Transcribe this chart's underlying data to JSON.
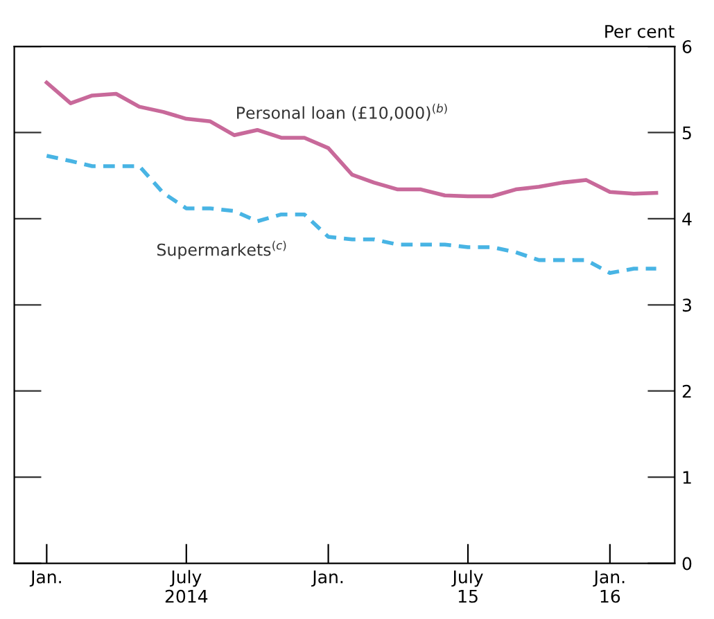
{
  "chart_data": {
    "type": "line",
    "ylabel": "Per cent",
    "x": [
      "2014-01",
      "2014-02",
      "2014-03",
      "2014-04",
      "2014-05",
      "2014-06",
      "2014-07",
      "2014-08",
      "2014-09",
      "2014-10",
      "2014-11",
      "2014-12",
      "2015-01",
      "2015-02",
      "2015-03",
      "2015-04",
      "2015-05",
      "2015-06",
      "2015-07",
      "2015-08",
      "2015-09",
      "2015-10",
      "2015-11",
      "2015-12",
      "2016-01",
      "2016-02",
      "2016-03"
    ],
    "series": [
      {
        "name": "Personal loan (£10,000)$^{(b)}$",
        "color": "#c8699a",
        "line_style": "solid",
        "values": [
          5.58,
          5.34,
          5.43,
          5.45,
          5.3,
          5.24,
          5.16,
          5.13,
          4.97,
          5.03,
          4.94,
          4.94,
          4.82,
          4.51,
          4.42,
          4.34,
          4.34,
          4.27,
          4.26,
          4.26,
          4.34,
          4.37,
          4.42,
          4.45,
          4.31,
          4.29,
          4.3
        ]
      },
      {
        "name": "Supermarkets$^{(c)}$",
        "color": "#48b4e4",
        "line_style": "dashed",
        "values": [
          4.73,
          4.67,
          4.61,
          4.61,
          4.61,
          4.3,
          4.12,
          4.12,
          4.09,
          3.97,
          4.05,
          4.05,
          3.79,
          3.76,
          3.76,
          3.7,
          3.7,
          3.7,
          3.67,
          3.67,
          3.61,
          3.52,
          3.52,
          3.52,
          3.37,
          3.42,
          3.42
        ]
      }
    ],
    "xlim": [
      "2013-11-20",
      "2016-03-25"
    ],
    "xticks": [
      {
        "value": "2014-01",
        "label": "Jan."
      },
      {
        "value": "2014-07",
        "label": "July\n2014"
      },
      {
        "value": "2015-01",
        "label": "Jan."
      },
      {
        "value": "2015-07",
        "label": "July\n15"
      },
      {
        "value": "2016-01",
        "label": "Jan.\n16"
      }
    ],
    "ylim": [
      0,
      6
    ],
    "yticks": [
      0,
      1,
      2,
      3,
      4,
      5,
      6
    ],
    "grid": false,
    "legend": false,
    "marker": "none"
  }
}
